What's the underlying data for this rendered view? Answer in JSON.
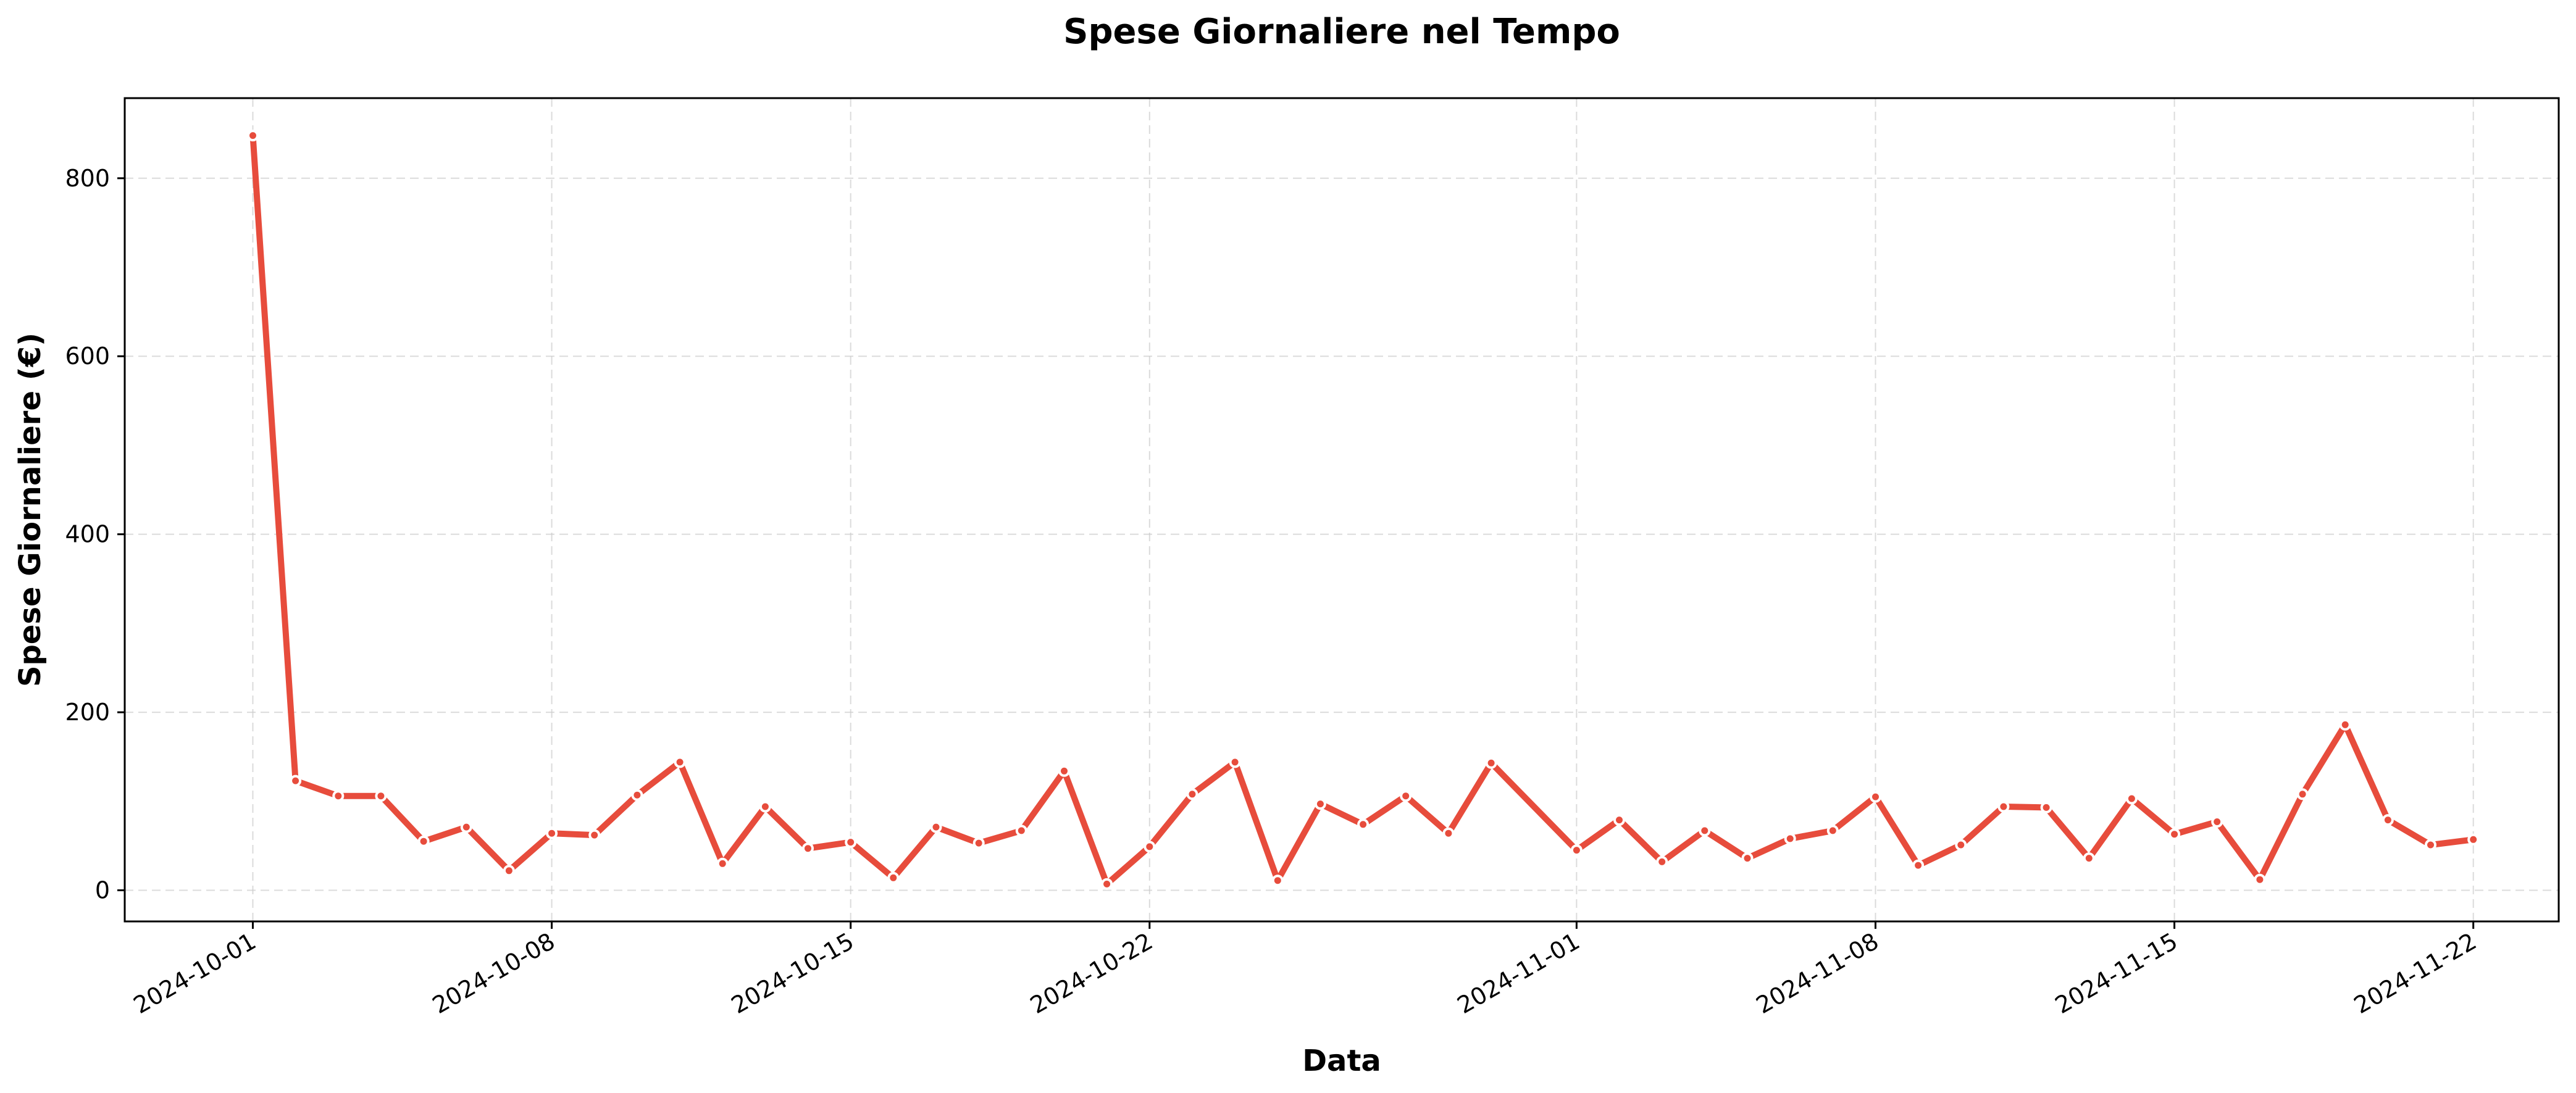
{
  "chart_data": {
    "type": "line",
    "title": "Spese Giornaliere nel Tempo",
    "xlabel": "Data",
    "ylabel": "Spese Giornaliere (€)",
    "x_ticks": [
      "2024-10-01",
      "2024-10-08",
      "2024-10-15",
      "2024-10-22",
      "2024-11-01",
      "2024-11-08",
      "2024-11-15",
      "2024-11-22"
    ],
    "y_ticks": [
      0,
      200,
      400,
      600,
      800
    ],
    "xlim": [
      "2024-09-28",
      "2024-11-24"
    ],
    "ylim": [
      -35,
      890
    ],
    "grid": true,
    "grid_style": "dashed",
    "line_color": "#e74c3c",
    "marker": "circle",
    "series": [
      {
        "x": [
          "2024-10-01",
          "2024-10-02",
          "2024-10-03",
          "2024-10-04",
          "2024-10-05",
          "2024-10-06",
          "2024-10-07",
          "2024-10-08",
          "2024-10-09",
          "2024-10-10",
          "2024-10-11",
          "2024-10-12",
          "2024-10-13",
          "2024-10-14",
          "2024-10-15",
          "2024-10-16",
          "2024-10-17",
          "2024-10-18",
          "2024-10-19",
          "2024-10-20",
          "2024-10-21",
          "2024-10-22",
          "2024-10-23",
          "2024-10-24",
          "2024-10-25",
          "2024-10-26",
          "2024-10-27",
          "2024-10-28",
          "2024-10-29",
          "2024-10-30",
          "2024-11-01",
          "2024-11-02",
          "2024-11-03",
          "2024-11-04",
          "2024-11-05",
          "2024-11-06",
          "2024-11-07",
          "2024-11-08",
          "2024-11-09",
          "2024-11-10",
          "2024-11-11",
          "2024-11-12",
          "2024-11-13",
          "2024-11-14",
          "2024-11-15",
          "2024-11-16",
          "2024-11-17",
          "2024-11-18",
          "2024-11-19",
          "2024-11-20",
          "2024-11-21",
          "2024-11-22"
        ],
        "values": [
          848,
          123,
          106,
          106,
          55,
          71,
          22,
          64,
          62,
          107,
          144,
          30,
          94,
          47,
          54,
          14,
          71,
          53,
          67,
          134,
          7,
          49,
          108,
          144,
          11,
          97,
          74,
          106,
          64,
          143,
          45,
          79,
          32,
          67,
          36,
          58,
          67,
          105,
          28,
          51,
          94,
          93,
          36,
          103,
          63,
          77,
          12,
          108,
          186,
          79,
          51,
          57
        ]
      }
    ]
  }
}
